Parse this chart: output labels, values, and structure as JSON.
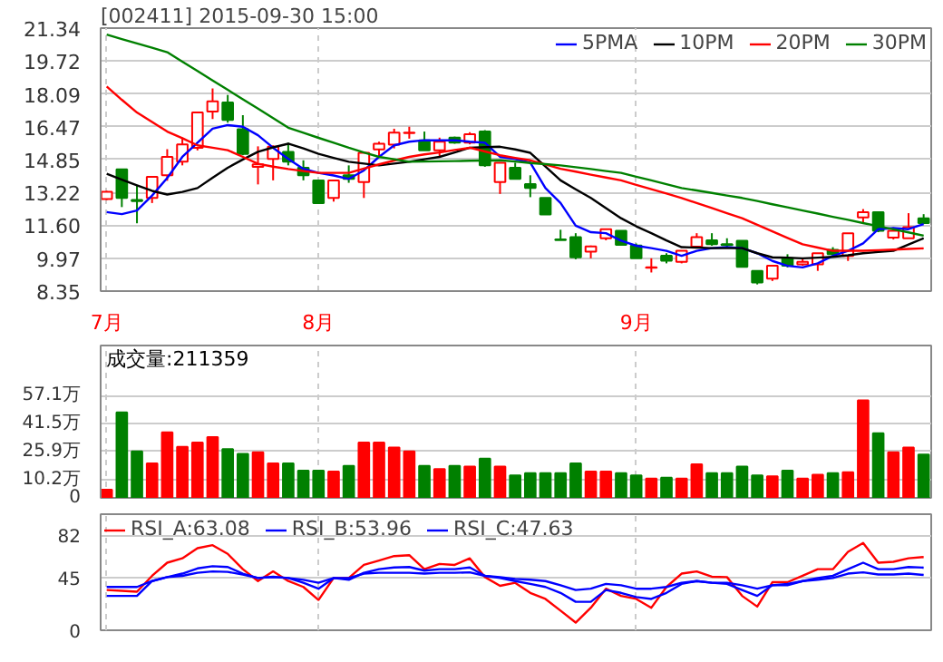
{
  "chart_data": [
    {
      "type": "candlestick",
      "title": "[002411] 2015-09-30 15:00",
      "legend": "top right",
      "grid": true,
      "categories": [
        "7月",
        null,
        null,
        null,
        null,
        null,
        null,
        null,
        null,
        null,
        null,
        null,
        null,
        null,
        "8月",
        null,
        null,
        null,
        null,
        null,
        null,
        null,
        null,
        null,
        null,
        null,
        null,
        null,
        null,
        null,
        null,
        null,
        null,
        null,
        null,
        "9月",
        null,
        null,
        null,
        null,
        null,
        null,
        null,
        null,
        null,
        null,
        null,
        null,
        null,
        null,
        null,
        null,
        null,
        null,
        null
      ],
      "ylim": [
        8.35,
        21.34
      ],
      "yticks": [
        8.35,
        9.97,
        {
          "value": 11.6,
          "label": "11.60"
        },
        13.22,
        14.85,
        16.47,
        18.09,
        19.72,
        21.34
      ],
      "ohlc": [
        [
          12.9,
          13.3,
          12.85,
          13.25
        ],
        [
          14.36,
          14.36,
          12.5,
          12.95
        ],
        [
          12.85,
          13.57,
          11.7,
          12.8
        ],
        [
          12.95,
          13.99,
          12.7,
          13.99
        ],
        [
          14.07,
          15.36,
          13.8,
          14.98
        ],
        [
          14.74,
          15.93,
          14.56,
          15.6
        ],
        [
          15.43,
          17.17,
          15.3,
          17.17
        ],
        [
          17.22,
          18.36,
          16.85,
          17.72
        ],
        [
          17.67,
          18.04,
          16.67,
          16.8
        ],
        [
          16.35,
          17.04,
          15.06,
          15.13
        ],
        [
          14.49,
          15.5,
          13.62,
          14.61
        ],
        [
          14.88,
          15.55,
          13.82,
          15.48
        ],
        [
          15.23,
          15.68,
          14.56,
          14.74
        ],
        [
          14.44,
          14.81,
          13.82,
          14.07
        ],
        [
          13.82,
          13.82,
          12.65,
          12.7
        ],
        [
          12.95,
          13.82,
          12.77,
          13.82
        ],
        [
          14.07,
          14.56,
          13.7,
          13.89
        ],
        [
          13.74,
          15.18,
          12.95,
          15.18
        ],
        [
          15.35,
          15.73,
          14.94,
          15.63
        ],
        [
          15.58,
          16.37,
          15.4,
          16.18
        ],
        [
          16.15,
          16.47,
          15.88,
          16.18
        ],
        [
          15.8,
          16.23,
          15.3,
          15.3
        ],
        [
          15.3,
          15.93,
          14.98,
          15.73
        ],
        [
          15.93,
          15.98,
          15.63,
          15.68
        ],
        [
          15.68,
          16.2,
          15.6,
          16.1
        ],
        [
          16.23,
          16.3,
          14.49,
          14.56
        ],
        [
          13.74,
          14.69,
          13.15,
          14.69
        ],
        [
          14.44,
          14.69,
          13.89,
          13.89
        ],
        [
          13.64,
          14.07,
          12.99,
          13.44
        ],
        [
          12.95,
          12.95,
          12.13,
          12.13
        ],
        [
          10.9,
          11.38,
          10.87,
          10.87
        ],
        [
          11.01,
          11.21,
          9.92,
          10.02
        ],
        [
          10.3,
          10.6,
          9.97,
          10.56
        ],
        [
          10.96,
          11.41,
          10.86,
          11.41
        ],
        [
          11.33,
          11.33,
          10.59,
          10.64
        ],
        [
          10.6,
          10.7,
          9.97,
          9.97
        ],
        [
          9.5,
          9.97,
          9.27,
          9.53
        ],
        [
          10.1,
          10.22,
          9.72,
          9.85
        ],
        [
          9.8,
          10.34,
          9.72,
          10.34
        ],
        [
          10.54,
          11.21,
          10.5,
          11.01
        ],
        [
          10.86,
          11.21,
          10.59,
          10.67
        ],
        [
          10.67,
          10.96,
          10.54,
          10.62
        ],
        [
          10.84,
          10.84,
          9.55,
          9.55
        ],
        [
          9.35,
          9.35,
          8.68,
          8.78
        ],
        [
          8.97,
          9.6,
          8.85,
          9.6
        ],
        [
          9.97,
          10.17,
          9.52,
          9.6
        ],
        [
          9.67,
          9.97,
          9.6,
          9.8
        ],
        [
          9.67,
          10.22,
          9.35,
          10.22
        ],
        [
          10.39,
          10.52,
          10.09,
          10.17
        ],
        [
          10.09,
          11.21,
          9.84,
          11.21
        ],
        [
          11.99,
          12.4,
          11.71,
          12.25
        ],
        [
          12.25,
          12.25,
          11.26,
          11.33
        ],
        [
          10.99,
          11.5,
          10.9,
          11.33
        ],
        [
          10.96,
          12.2,
          10.96,
          11.51
        ],
        [
          11.95,
          12.15,
          11.66,
          11.71
        ]
      ],
      "colors": [
        "#ff0000",
        "#008000",
        "#008000",
        "#ff0000",
        "#ff0000",
        "#ff0000",
        "#ff0000",
        "#ff0000",
        "#008000",
        "#008000",
        "#ff0000",
        "#ff0000",
        "#008000",
        "#008000",
        "#008000",
        "#ff0000",
        "#008000",
        "#ff0000",
        "#ff0000",
        "#ff0000",
        "#ff0000",
        "#008000",
        "#ff0000",
        "#008000",
        "#ff0000",
        "#008000",
        "#ff0000",
        "#008000",
        "#008000",
        "#008000",
        "#008000",
        "#008000",
        "#ff0000",
        "#ff0000",
        "#008000",
        "#008000",
        "#ff0000",
        "#008000",
        "#ff0000",
        "#ff0000",
        "#008000",
        "#008000",
        "#008000",
        "#008000",
        "#ff0000",
        "#008000",
        "#ff0000",
        "#ff0000",
        "#008000",
        "#ff0000",
        "#ff0000",
        "#008000",
        "#ff0000",
        "#ff0000",
        "#008000"
      ],
      "series": [
        {
          "name": "5PMA",
          "type": "line",
          "color": "#0000ff",
          "values": [
            12.25,
            12.15,
            12.33,
            13.07,
            13.94,
            14.98,
            15.68,
            16.37,
            16.55,
            16.47,
            16.05,
            15.43,
            14.88,
            14.39,
            14.19,
            14.06,
            13.89,
            14.31,
            14.98,
            15.55,
            15.73,
            15.8,
            15.8,
            15.8,
            15.73,
            15.68,
            14.98,
            14.88,
            14.69,
            13.44,
            12.7,
            11.58,
            11.26,
            11.21,
            10.84,
            10.59,
            10.47,
            10.34,
            10.09,
            10.34,
            10.47,
            10.52,
            10.47,
            10.22,
            9.84,
            9.6,
            9.52,
            9.72,
            10.09,
            10.34,
            10.71,
            11.41,
            11.46,
            11.41,
            11.66
          ]
        },
        {
          "name": "10PM",
          "type": "line",
          "color": "#000000",
          "values": [
            14.14,
            13.85,
            13.57,
            13.3,
            13.12,
            13.25,
            13.44,
            13.95,
            14.44,
            14.85,
            15.23,
            15.45,
            15.63,
            15.4,
            15.13,
            14.93,
            14.74,
            14.65,
            14.56,
            14.65,
            14.74,
            14.86,
            14.98,
            15.2,
            15.43,
            15.46,
            15.48,
            15.35,
            15.18,
            14.5,
            13.82,
            13.38,
            12.95,
            12.45,
            11.95,
            11.55,
            11.21,
            10.85,
            10.52,
            10.5,
            10.47,
            10.47,
            10.47,
            10.22,
            10.02,
            10.0,
            9.97,
            10.0,
            10.04,
            10.12,
            10.22,
            10.28,
            10.34,
            10.65,
            10.96
          ]
        },
        {
          "name": "20PM",
          "type": "line",
          "color": "#ff0000",
          "values": [
            18.46,
            17.8,
            17.17,
            16.7,
            16.23,
            15.9,
            15.55,
            15.43,
            15.31,
            14.98,
            14.64,
            14.5,
            14.38,
            14.28,
            14.19,
            14.19,
            14.19,
            14.4,
            14.61,
            14.8,
            14.98,
            15.1,
            15.2,
            15.32,
            15.43,
            15.25,
            15.06,
            14.93,
            14.81,
            14.6,
            14.39,
            14.25,
            14.1,
            13.96,
            13.82,
            13.6,
            13.38,
            13.17,
            12.95,
            12.7,
            12.45,
            12.2,
            11.95,
            11.63,
            11.3,
            10.98,
            10.66,
            10.5,
            10.34,
            10.34,
            10.34,
            10.37,
            10.4,
            10.43,
            10.46
          ]
        },
        {
          "name": "30PM",
          "type": "line",
          "color": "#008000",
          "values": [
            21.02,
            20.8,
            20.58,
            20.37,
            20.15,
            19.68,
            19.22,
            18.75,
            18.29,
            17.82,
            17.36,
            16.89,
            16.42,
            16.17,
            15.92,
            15.68,
            15.43,
            15.2,
            14.98,
            14.86,
            14.74,
            14.75,
            14.76,
            14.77,
            14.79,
            14.8,
            14.81,
            14.75,
            14.68,
            14.62,
            14.56,
            14.47,
            14.38,
            14.28,
            14.19,
            14.0,
            13.82,
            13.63,
            13.44,
            13.32,
            13.2,
            13.07,
            12.95,
            12.8,
            12.64,
            12.49,
            12.33,
            12.18,
            12.02,
            11.87,
            11.71,
            11.56,
            11.4,
            11.25,
            11.09
          ]
        }
      ]
    },
    {
      "type": "bar",
      "title": "成交量:211359",
      "grid": true,
      "tick_labels": "y",
      "categories": [
        null,
        null,
        null,
        null,
        null,
        null,
        null,
        null,
        null,
        null,
        null,
        null,
        null,
        null,
        null,
        null,
        null,
        null,
        null,
        null,
        null,
        null,
        null,
        null,
        null,
        null,
        null,
        null,
        null,
        null,
        null,
        null,
        null,
        null,
        null,
        null,
        null,
        null,
        null,
        null,
        null,
        null,
        null,
        null,
        null,
        null,
        null,
        null,
        null,
        null,
        null,
        null,
        null,
        null,
        null
      ],
      "ylim": [
        0,
        85
      ],
      "yticks": [
        0,
        {
          "value": 10.2,
          "label": "10.2万"
        },
        {
          "value": 25.9,
          "label": "25.9万"
        },
        {
          "value": 41.5,
          "label": "41.5万"
        },
        {
          "value": 57.1,
          "label": "57.1万"
        }
      ],
      "values": [
        4.5,
        47.7,
        25.9,
        19.2,
        36.6,
        28.5,
        30.8,
        33.9,
        27.2,
        24.5,
        25.4,
        19.2,
        19.2,
        15.2,
        15.2,
        14.7,
        17.8,
        30.8,
        30.8,
        28.1,
        25.9,
        17.8,
        16.1,
        17.8,
        17.4,
        21.9,
        17.4,
        12.5,
        13.8,
        13.8,
        13.8,
        19.2,
        14.7,
        14.7,
        13.8,
        12.5,
        10.7,
        11.2,
        10.7,
        18.7,
        13.8,
        13.8,
        17.4,
        12.5,
        12.0,
        15.2,
        10.7,
        12.9,
        13.8,
        14.3,
        54.4,
        36.1,
        25.4,
        28.1,
        24.1
      ],
      "colors": [
        "#ff0000",
        "#008000",
        "#008000",
        "#ff0000",
        "#ff0000",
        "#ff0000",
        "#ff0000",
        "#ff0000",
        "#008000",
        "#008000",
        "#ff0000",
        "#ff0000",
        "#008000",
        "#008000",
        "#008000",
        "#ff0000",
        "#008000",
        "#ff0000",
        "#ff0000",
        "#ff0000",
        "#ff0000",
        "#008000",
        "#ff0000",
        "#008000",
        "#ff0000",
        "#008000",
        "#ff0000",
        "#008000",
        "#008000",
        "#008000",
        "#008000",
        "#008000",
        "#ff0000",
        "#ff0000",
        "#008000",
        "#008000",
        "#ff0000",
        "#008000",
        "#ff0000",
        "#ff0000",
        "#008000",
        "#008000",
        "#008000",
        "#008000",
        "#ff0000",
        "#008000",
        "#ff0000",
        "#ff0000",
        "#008000",
        "#ff0000",
        "#ff0000",
        "#008000",
        "#ff0000",
        "#ff0000",
        "#008000"
      ]
    },
    {
      "type": "line",
      "legend": "top left",
      "grid": true,
      "tick_labels": "y",
      "categories": [
        null,
        null,
        null,
        null,
        null,
        null,
        null,
        null,
        null,
        null,
        null,
        null,
        null,
        null,
        null,
        null,
        null,
        null,
        null,
        null,
        null,
        null,
        null,
        null,
        null,
        null,
        null,
        null,
        null,
        null,
        null,
        null,
        null,
        null,
        null,
        null,
        null,
        null,
        null,
        null,
        null,
        null,
        null,
        null,
        null,
        null,
        null,
        null,
        null,
        null,
        null,
        null,
        null,
        null,
        null
      ],
      "ylim": [
        0,
        100
      ],
      "yticks": [
        0,
        45,
        82
      ],
      "series": [
        {
          "name": "RSI_A:63.08",
          "color": "#ff0000",
          "values": [
            34.7,
            34.0,
            33.2,
            46.9,
            58.2,
            62,
            70.7,
            73.3,
            65.8,
            52.6,
            42.4,
            50.7,
            42.4,
            37.3,
            26.1,
            45,
            45,
            56.3,
            60.1,
            63.9,
            64.7,
            52.6,
            57.1,
            56.3,
            62,
            45.8,
            38.3,
            40.9,
            32.2,
            27,
            16.9,
            6.6,
            19.4,
            35.8,
            29.6,
            27,
            19.4,
            37.3,
            48.8,
            50.7,
            46.1,
            45.8,
            29.6,
            20.4,
            41.4,
            41.4,
            46.9,
            52.6,
            52.6,
            67.6,
            75.2,
            58.2,
            59,
            62,
            63.08
          ]
        },
        {
          "name": "RSI_B:53.96",
          "color": "#0000ff",
          "values": [
            29.6,
            29.6,
            29.6,
            42.4,
            45.8,
            48.8,
            53.3,
            55.2,
            54.5,
            48.8,
            45,
            45.8,
            45,
            40.9,
            35.8,
            45,
            43.5,
            49.5,
            52.6,
            54.1,
            54.5,
            51.4,
            52.6,
            52.6,
            54.1,
            46.9,
            45,
            42.4,
            39.9,
            37.3,
            32.2,
            24.5,
            24.5,
            34.7,
            32.2,
            28.6,
            27,
            32.2,
            39.9,
            42.4,
            40.9,
            39.9,
            34.7,
            29.6,
            38.8,
            38.8,
            42.4,
            45,
            46.9,
            52.6,
            58.2,
            52.6,
            52.6,
            54.5,
            53.96
          ]
        },
        {
          "name": "RSI_C:47.63",
          "color": "#0000ff",
          "values": [
            37.3,
            37.3,
            37.3,
            42.4,
            45.8,
            46.9,
            49.5,
            50.7,
            50.3,
            48,
            45,
            46.1,
            45,
            43.5,
            40.9,
            45,
            45,
            48.8,
            49.5,
            49.5,
            49.5,
            48.8,
            49.5,
            49.5,
            49.9,
            46.9,
            45.8,
            44.2,
            43.5,
            42.4,
            38.8,
            34.7,
            35.8,
            39.9,
            38.8,
            35.8,
            35.8,
            37.3,
            40.9,
            42.4,
            40.9,
            40.9,
            38.8,
            35.8,
            38.8,
            39.9,
            42.4,
            43.5,
            45,
            48.8,
            49.9,
            48,
            48,
            48.8,
            47.63
          ]
        }
      ]
    }
  ]
}
